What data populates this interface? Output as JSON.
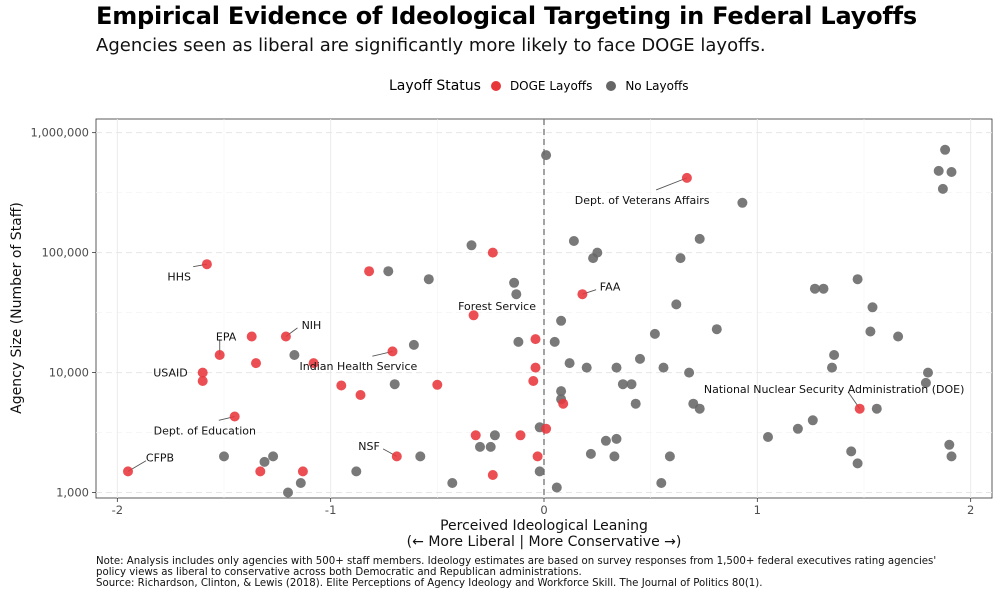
{
  "chart_data": {
    "type": "scatter",
    "title": "Empirical Evidence of Ideological Targeting in Federal Layoffs",
    "subtitle": "Agencies seen as liberal are significantly more likely to face DOGE layoffs.",
    "xlabel_line1": "Perceived Ideological Leaning",
    "xlabel_line2": "(← More Liberal | More Conservative →)",
    "ylabel": "Agency Size (Number of Staff)",
    "xlim": [
      -2.1,
      2.1
    ],
    "ylim": [
      900,
      1300000
    ],
    "y_scale": "log",
    "x_ticks": [
      -2,
      -1,
      0,
      1,
      2
    ],
    "x_tick_labels": [
      "-2",
      "-1",
      "0",
      "1",
      "2"
    ],
    "y_ticks": [
      1000,
      10000,
      100000,
      1000000
    ],
    "y_tick_labels": [
      "1,000",
      "10,000",
      "100,000",
      "1,000,000"
    ],
    "reference_line_x": 0,
    "grid": true,
    "legend": {
      "title": "Layoff Status",
      "position": "top",
      "entries": [
        {
          "label": "DOGE Layoffs",
          "color": "#E8373B"
        },
        {
          "label": "No Layoffs",
          "color": "#666666"
        }
      ]
    },
    "series": [
      {
        "name": "DOGE Layoffs",
        "color": "#E8373B",
        "points": [
          [
            -1.95,
            1500
          ],
          [
            -1.58,
            80000
          ],
          [
            -1.52,
            14000
          ],
          [
            -1.37,
            20000
          ],
          [
            -1.35,
            12000
          ],
          [
            -1.6,
            10000
          ],
          [
            -1.6,
            8500
          ],
          [
            -1.45,
            4300
          ],
          [
            -1.33,
            1500
          ],
          [
            -1.21,
            20000
          ],
          [
            -1.13,
            1500
          ],
          [
            -1.08,
            12000
          ],
          [
            -0.82,
            70000
          ],
          [
            -0.95,
            7800
          ],
          [
            -0.86,
            6500
          ],
          [
            -0.71,
            15000
          ],
          [
            -0.69,
            2000
          ],
          [
            -0.5,
            7900
          ],
          [
            -0.33,
            30000
          ],
          [
            -0.32,
            3000
          ],
          [
            -0.24,
            100000
          ],
          [
            -0.24,
            1400
          ],
          [
            -0.11,
            3000
          ],
          [
            -0.04,
            19000
          ],
          [
            -0.04,
            11000
          ],
          [
            -0.05,
            8500
          ],
          [
            -0.03,
            2000
          ],
          [
            0.01,
            3400
          ],
          [
            0.09,
            5500
          ],
          [
            0.18,
            45000
          ],
          [
            0.67,
            420000
          ],
          [
            1.48,
            5000
          ]
        ]
      },
      {
        "name": "No Layoffs",
        "color": "#666666",
        "points": [
          [
            0.01,
            650000
          ],
          [
            0.93,
            260000
          ],
          [
            1.88,
            720000
          ],
          [
            1.85,
            480000
          ],
          [
            1.91,
            470000
          ],
          [
            1.87,
            340000
          ],
          [
            -0.34,
            115000
          ],
          [
            0.14,
            125000
          ],
          [
            0.25,
            100000
          ],
          [
            0.23,
            90000
          ],
          [
            0.73,
            130000
          ],
          [
            0.64,
            90000
          ],
          [
            -0.73,
            70000
          ],
          [
            -0.54,
            60000
          ],
          [
            -0.14,
            56000
          ],
          [
            -0.13,
            45000
          ],
          [
            1.27,
            50000
          ],
          [
            1.31,
            50000
          ],
          [
            1.47,
            60000
          ],
          [
            0.62,
            37000
          ],
          [
            1.54,
            35000
          ],
          [
            0.08,
            27000
          ],
          [
            0.81,
            23000
          ],
          [
            0.52,
            21000
          ],
          [
            1.53,
            22000
          ],
          [
            1.66,
            20000
          ],
          [
            -0.61,
            17000
          ],
          [
            -0.12,
            18000
          ],
          [
            0.05,
            18000
          ],
          [
            1.36,
            14000
          ],
          [
            -1.17,
            14000
          ],
          [
            1.35,
            11000
          ],
          [
            0.12,
            12000
          ],
          [
            0.2,
            11000
          ],
          [
            0.34,
            11000
          ],
          [
            0.45,
            13000
          ],
          [
            0.56,
            11000
          ],
          [
            0.68,
            10000
          ],
          [
            1.8,
            10000
          ],
          [
            -0.7,
            8000
          ],
          [
            0.37,
            8000
          ],
          [
            0.41,
            8000
          ],
          [
            1.79,
            8200
          ],
          [
            0.08,
            7000
          ],
          [
            0.08,
            6000
          ],
          [
            0.43,
            5500
          ],
          [
            0.7,
            5500
          ],
          [
            0.73,
            5000
          ],
          [
            1.56,
            5000
          ],
          [
            -0.02,
            3500
          ],
          [
            1.26,
            4000
          ],
          [
            1.19,
            3400
          ],
          [
            1.05,
            2900
          ],
          [
            0.29,
            2700
          ],
          [
            0.34,
            2800
          ],
          [
            -0.23,
            3000
          ],
          [
            -0.3,
            2400
          ],
          [
            -0.25,
            2400
          ],
          [
            1.44,
            2200
          ],
          [
            1.9,
            2500
          ],
          [
            -1.5,
            2000
          ],
          [
            -1.27,
            2000
          ],
          [
            -1.31,
            1800
          ],
          [
            -0.58,
            2000
          ],
          [
            0.22,
            2100
          ],
          [
            0.33,
            2000
          ],
          [
            0.59,
            2000
          ],
          [
            1.91,
            2000
          ],
          [
            1.47,
            1750
          ],
          [
            -0.88,
            1500
          ],
          [
            -0.02,
            1500
          ],
          [
            -1.14,
            1200
          ],
          [
            -1.2,
            1000
          ],
          [
            -0.43,
            1200
          ],
          [
            0.06,
            1100
          ],
          [
            0.55,
            1200
          ]
        ]
      }
    ],
    "annotations": [
      {
        "label": "CFPB",
        "point": [
          -1.95,
          1500
        ],
        "text": [
          -1.8,
          1950
        ],
        "anchor": "middle",
        "leader": true
      },
      {
        "label": "HHS",
        "point": [
          -1.58,
          80000
        ],
        "text": [
          -1.71,
          63000
        ],
        "anchor": "middle",
        "leader": true
      },
      {
        "label": "EPA",
        "point": [
          -1.52,
          14000
        ],
        "text": [
          -1.49,
          20000
        ],
        "anchor": "middle",
        "leader": true
      },
      {
        "label": "USAID",
        "point": [
          -1.6,
          10000
        ],
        "text": [
          -1.67,
          10000
        ],
        "anchor": "end",
        "leader": false
      },
      {
        "label": "Dept. of Education",
        "point": [
          -1.45,
          4300
        ],
        "text": [
          -1.59,
          3300
        ],
        "anchor": "middle",
        "leader": true
      },
      {
        "label": "NIH",
        "point": [
          -1.21,
          20000
        ],
        "text": [
          -1.09,
          25000
        ],
        "anchor": "middle",
        "leader": true
      },
      {
        "label": "Indian Health Service",
        "point": [
          -0.71,
          15000
        ],
        "text": [
          -0.87,
          11300
        ],
        "anchor": "middle",
        "leader": true
      },
      {
        "label": "NSF",
        "point": [
          -0.69,
          2000
        ],
        "text": [
          -0.82,
          2450
        ],
        "anchor": "middle",
        "leader": true
      },
      {
        "label": "Forest Service",
        "point": [
          -0.33,
          30000
        ],
        "text": [
          -0.22,
          36000
        ],
        "anchor": "middle",
        "leader": false
      },
      {
        "label": "FAA",
        "point": [
          0.18,
          45000
        ],
        "text": [
          0.31,
          52000
        ],
        "anchor": "middle",
        "leader": true
      },
      {
        "label": "Dept. of Veterans Affairs",
        "point": [
          0.67,
          420000
        ],
        "text": [
          0.46,
          275000
        ],
        "anchor": "middle",
        "leader": true
      },
      {
        "label": "National Nuclear Security Administration (DOE)",
        "point": [
          1.48,
          5000
        ],
        "text": [
          1.36,
          7300
        ],
        "anchor": "middle",
        "leader": true
      }
    ],
    "caption_lines": [
      "Note: Analysis includes only agencies with 500+ staff members. Ideology estimates are based on survey responses from 1,500+ federal executives rating agencies'",
      "policy views as liberal to conservative across both Democratic and Republican administrations.",
      "Source: Richardson, Clinton, & Lewis (2018). Elite Perceptions of Agency Ideology and Workforce Skill. The Journal of Politics 80(1)."
    ]
  }
}
